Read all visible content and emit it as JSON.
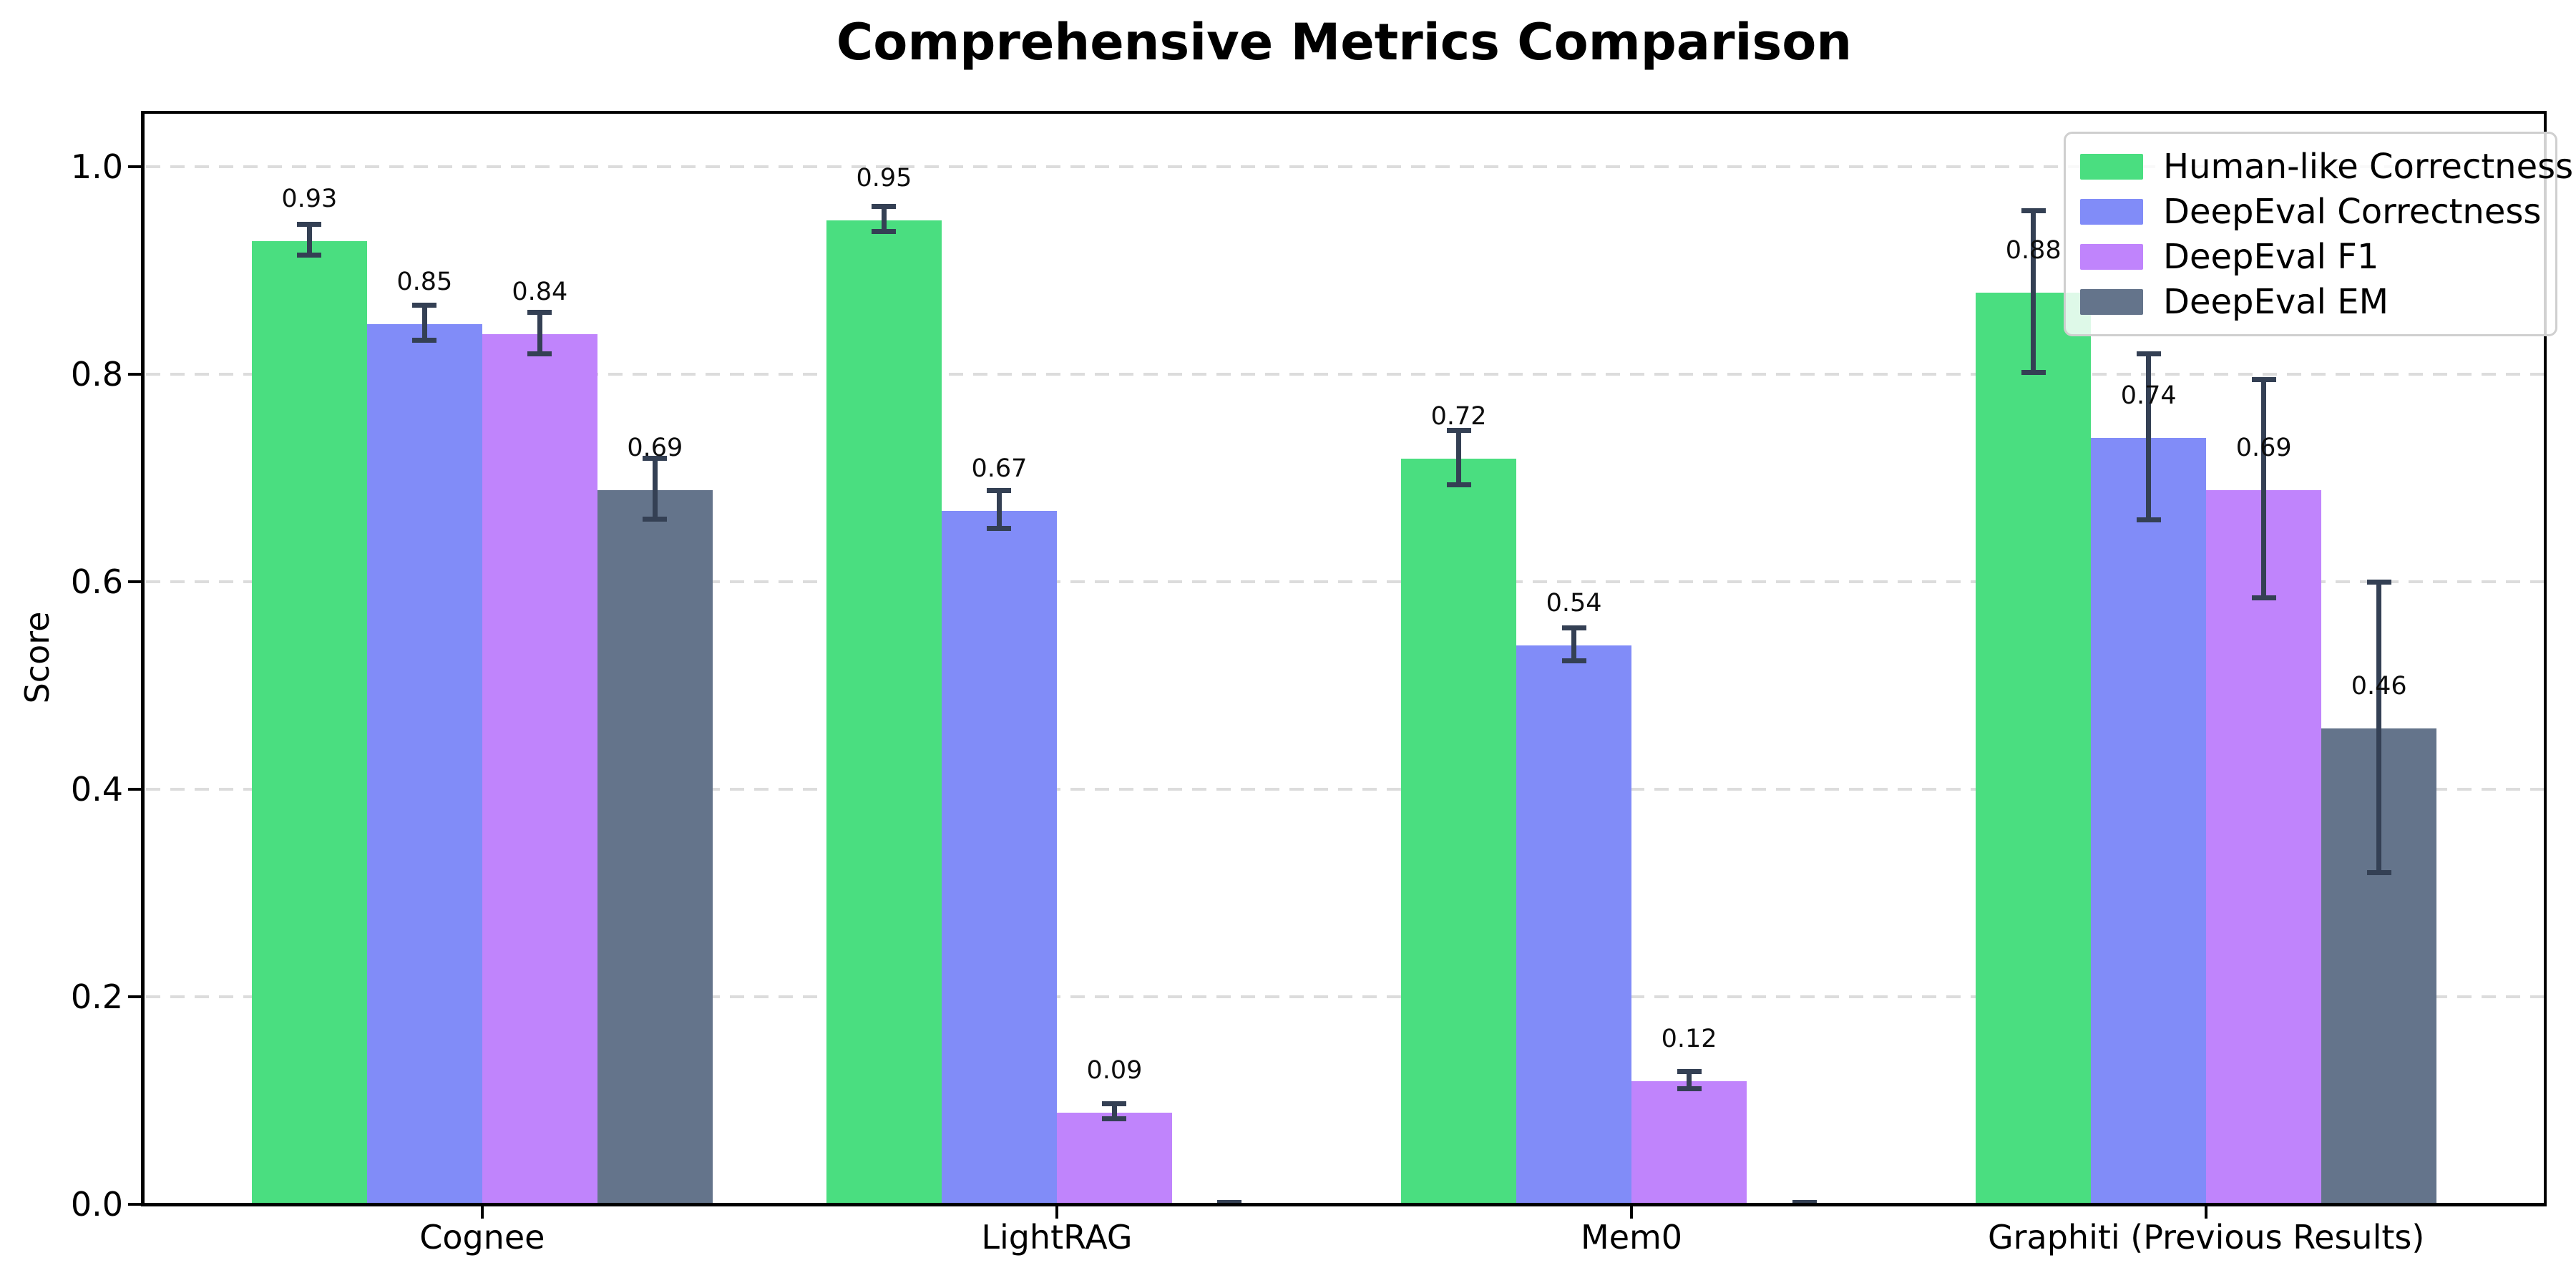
{
  "figure": {
    "title": "Comprehensive Metrics Comparison",
    "ylabel": "Score"
  },
  "chart_data": {
    "type": "bar",
    "title": "Comprehensive Metrics Comparison",
    "xlabel": "",
    "ylabel": "Score",
    "categories": [
      "Cognee",
      "LightRAG",
      "Mem0",
      "Graphiti (Previous Results)"
    ],
    "series": [
      {
        "name": "Human-like Correctness",
        "color": "#4ade80",
        "values": [
          0.93,
          0.95,
          0.72,
          0.88
        ],
        "errors": [
          0.015,
          0.012,
          0.026,
          0.078
        ],
        "labels": [
          "0.93",
          "0.95",
          "0.72",
          "0.88"
        ]
      },
      {
        "name": "DeepEval Correctness",
        "color": "#818cf8",
        "values": [
          0.85,
          0.67,
          0.54,
          0.74
        ],
        "errors": [
          0.017,
          0.018,
          0.016,
          0.08
        ],
        "labels": [
          "0.85",
          "0.67",
          "0.54",
          "0.74"
        ]
      },
      {
        "name": "DeepEval F1",
        "color": "#c084fc",
        "values": [
          0.84,
          0.09,
          0.12,
          0.69
        ],
        "errors": [
          0.02,
          0.007,
          0.008,
          0.105
        ],
        "labels": [
          "0.84",
          "0.09",
          "0.12",
          "0.69"
        ]
      },
      {
        "name": "DeepEval EM",
        "color": "#64748b",
        "values": [
          0.69,
          0.0,
          0.0,
          0.46
        ],
        "errors": [
          0.029,
          0.002,
          0.002,
          0.14
        ],
        "labels": [
          "0.69",
          "",
          "",
          "0.46"
        ]
      }
    ],
    "yticks": [
      0.0,
      0.2,
      0.4,
      0.6,
      0.8,
      1.0
    ],
    "ytick_labels": [
      "0.0",
      "0.2",
      "0.4",
      "0.6",
      "0.8",
      "1.0"
    ],
    "ylim": [
      0,
      1.054
    ],
    "grid": "horizontal-dashed",
    "legend_position": "upper right",
    "colors": {
      "errorbar": "#344054",
      "grid": "#dcdcdc",
      "axis": "#000000",
      "legend_border": "#cfcfcf"
    }
  }
}
